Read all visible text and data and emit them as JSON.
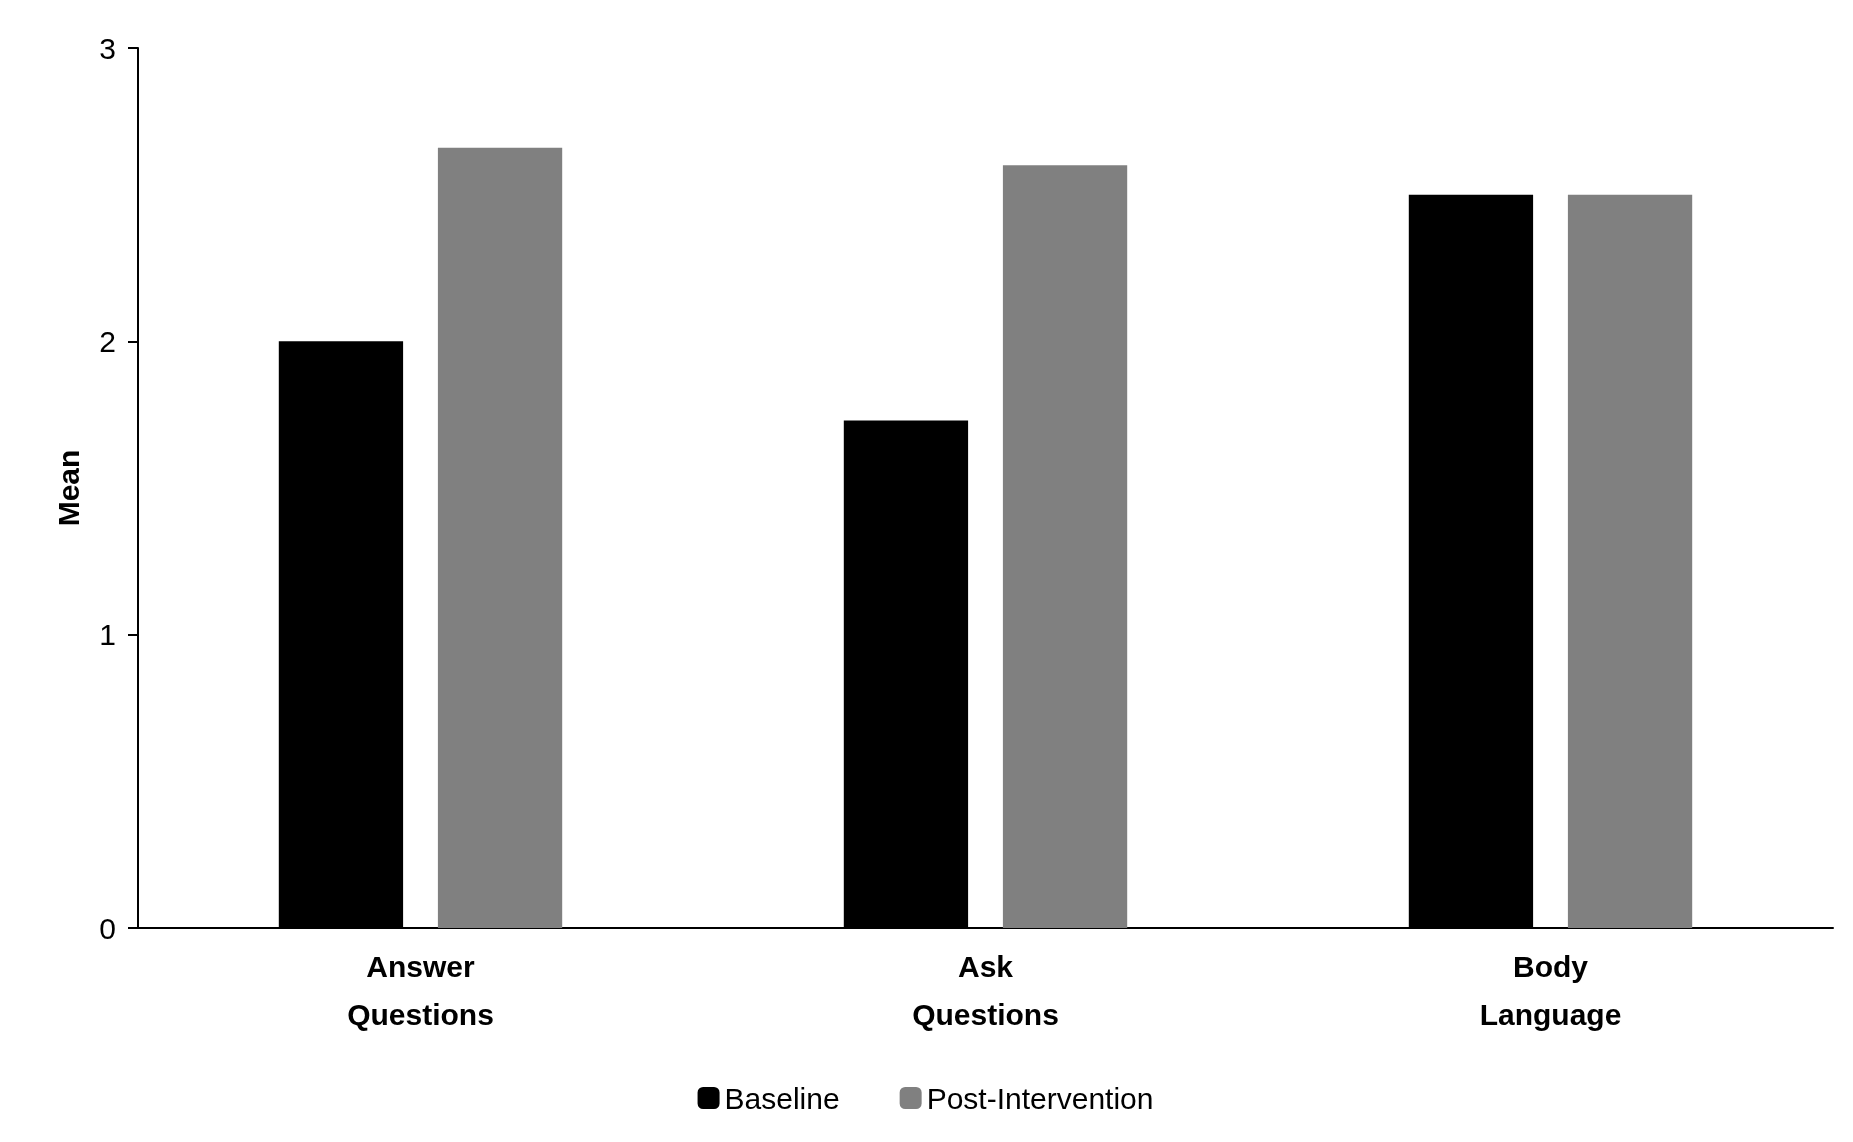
{
  "chart_data": {
    "type": "bar",
    "ylabel": "Mean",
    "categories": [
      "Answer\nQuestions",
      "Ask\nQuestions",
      "Body\nLanguage"
    ],
    "series": [
      {
        "name": "Baseline",
        "color": "#000000",
        "values": [
          2.0,
          1.73,
          2.5
        ]
      },
      {
        "name": "Post-Intervention",
        "color": "#808080",
        "values": [
          2.66,
          2.6,
          2.5
        ]
      }
    ],
    "ylim": [
      0,
      3
    ],
    "yticks": [
      0,
      1,
      2,
      3
    ],
    "grid": false,
    "legend": "bottom"
  }
}
